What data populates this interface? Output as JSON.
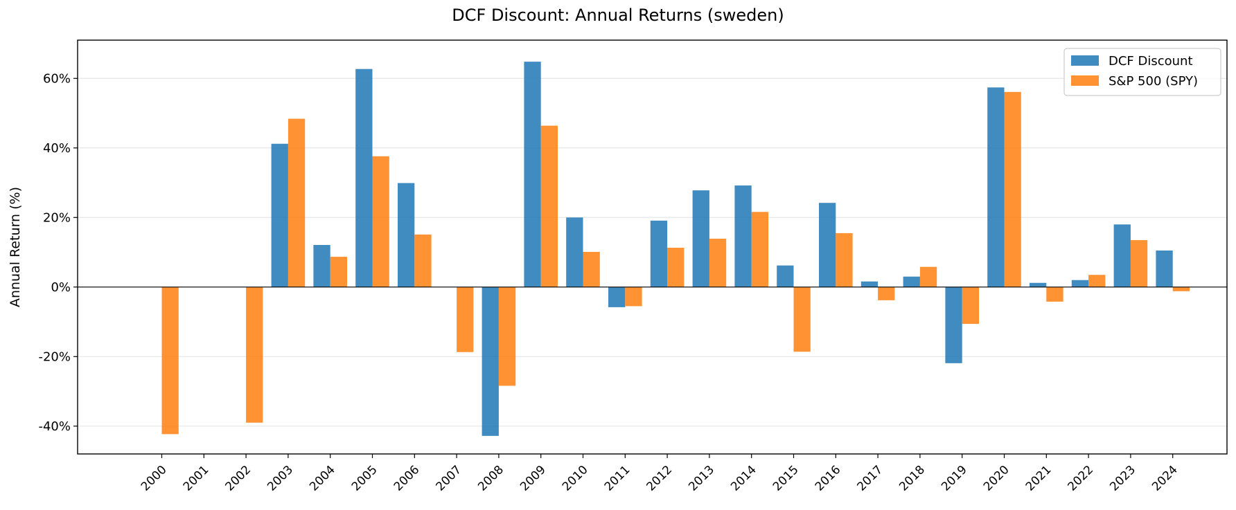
{
  "chart_data": {
    "type": "bar",
    "title": "DCF Discount: Annual Returns (sweden)",
    "xlabel": "",
    "ylabel": "Annual Return (%)",
    "categories": [
      "2000",
      "2001",
      "2002",
      "2003",
      "2004",
      "2005",
      "2006",
      "2007",
      "2008",
      "2009",
      "2010",
      "2011",
      "2012",
      "2013",
      "2014",
      "2015",
      "2016",
      "2017",
      "2018",
      "2019",
      "2020",
      "2021",
      "2022",
      "2023",
      "2024"
    ],
    "series": [
      {
        "name": "DCF Discount",
        "color": "#1f77b4",
        "values": [
          null,
          null,
          null,
          41.2,
          12.1,
          62.7,
          29.9,
          null,
          -42.8,
          64.8,
          20.0,
          -5.8,
          19.1,
          27.8,
          29.2,
          6.2,
          24.2,
          1.6,
          3.0,
          -21.9,
          57.4,
          1.2,
          2.0,
          18.0,
          10.5
        ]
      },
      {
        "name": "S&P 500 (SPY)",
        "color": "#ff7f0e",
        "values": [
          -42.3,
          null,
          -39.0,
          48.4,
          8.7,
          37.6,
          15.1,
          -18.7,
          -28.4,
          46.4,
          10.1,
          -5.5,
          11.3,
          13.9,
          21.6,
          -18.6,
          15.5,
          -3.8,
          5.8,
          -10.6,
          56.1,
          -4.2,
          3.5,
          13.5,
          -1.2
        ]
      }
    ],
    "yticks": [
      -40,
      -20,
      0,
      20,
      40,
      60
    ],
    "ytick_labels": [
      "-40%",
      "-20%",
      "0%",
      "20%",
      "40%",
      "60%"
    ],
    "ylim": [
      -48,
      71
    ],
    "grid": "horizontal",
    "legend_position": "top-right"
  }
}
